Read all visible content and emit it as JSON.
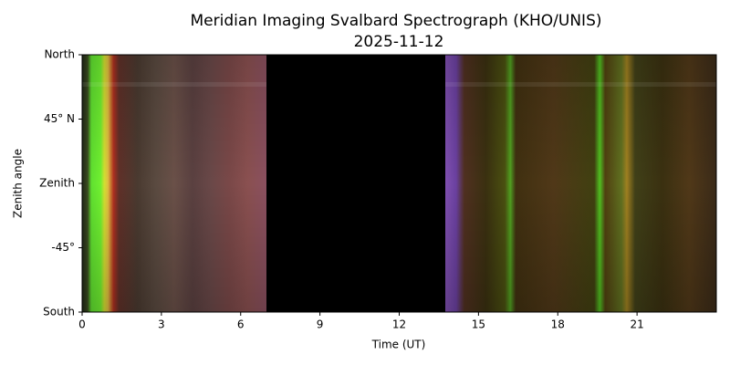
{
  "chart_data": {
    "type": "keogram",
    "title": "Meridian Imaging Svalbard Spectrograph (KHO/UNIS)",
    "subtitle": "2025-11-12",
    "x_label": "Time (UT)",
    "y_label": "Zenith angle",
    "xlim": [
      0,
      24
    ],
    "xticks": [
      0,
      3,
      6,
      9,
      12,
      15,
      18,
      21
    ],
    "ylim": [
      -90,
      90
    ],
    "yticks": [
      {
        "value": 90,
        "label": "North"
      },
      {
        "value": 45,
        "label": "45° N"
      },
      {
        "value": 0,
        "label": "Zenith"
      },
      {
        "value": -45,
        "label": "-45°"
      },
      {
        "value": -90,
        "label": "South"
      }
    ]
  }
}
